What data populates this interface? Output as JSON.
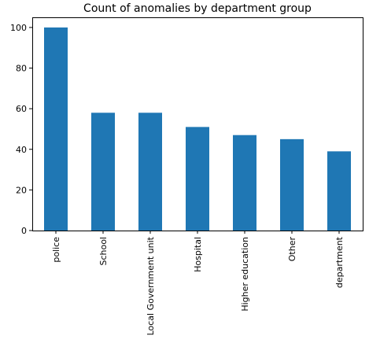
{
  "chart_data": {
    "type": "bar",
    "title": "Count of anomalies by department group",
    "xlabel": "",
    "ylabel": "",
    "categories": [
      "police",
      "School",
      "Local Government unit",
      "Hospital",
      "Higher education",
      "Other",
      "department"
    ],
    "values": [
      100,
      58,
      58,
      51,
      47,
      45,
      39
    ],
    "ylim": [
      0,
      105
    ],
    "yticks": [
      0,
      20,
      40,
      60,
      80,
      100
    ],
    "grid": false,
    "legend": "none",
    "bar_color": "#1f77b4"
  }
}
